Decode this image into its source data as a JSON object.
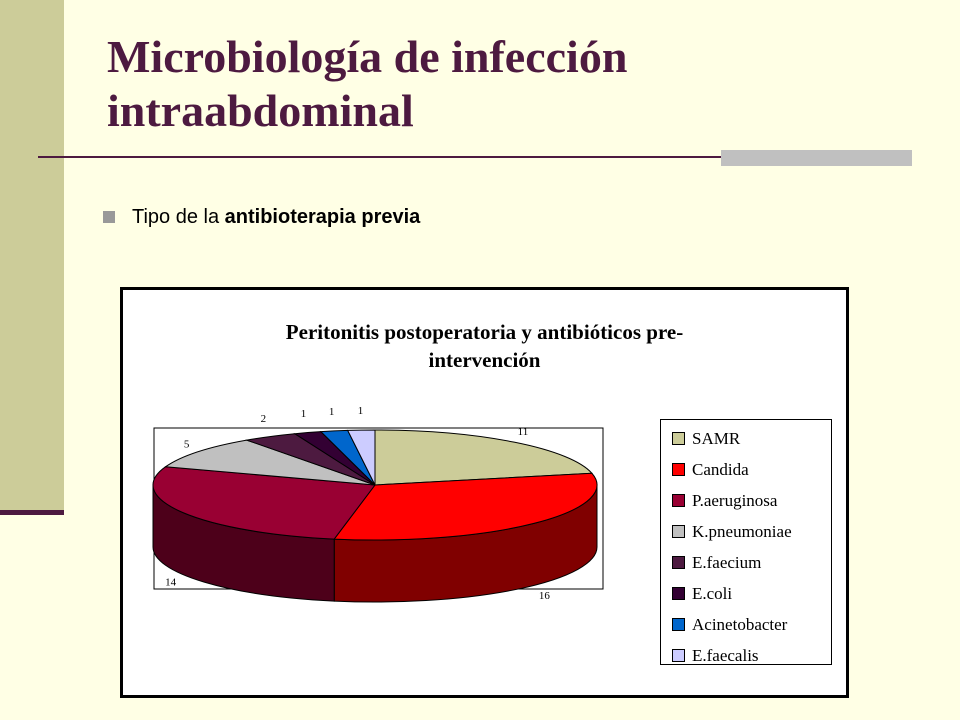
{
  "slide": {
    "title_line1": "Microbiología de infección",
    "title_line2": "intraabdominal",
    "bullet_prefix": "Tipo de la ",
    "bullet_bold": "antibioterapia previa"
  },
  "chart_data": {
    "type": "pie",
    "title_line1": "Peritonitis postoperatoria y antibióticos pre-",
    "title_line2": "intervención",
    "legend_position": "right",
    "three_d": true,
    "categories": [
      "SAMR",
      "Candida",
      "P.aeruginosa",
      "K.pneumoniae",
      "E.faecium",
      "E.coli",
      "Acinetobacter",
      "E.faecalis"
    ],
    "values": [
      11,
      16,
      14,
      5,
      2,
      1,
      1,
      1
    ],
    "colors": [
      "#CCCC99",
      "#FF0000",
      "#990033",
      "#C0C0C0",
      "#4D1A40",
      "#330033",
      "#0066CC",
      "#CCCCFF"
    ],
    "side_colors": [
      "#8A8A5C",
      "#800000",
      "#4D001A",
      "#808080",
      "#26001F",
      "#1A001A",
      "#003366",
      "#8080A0"
    ]
  }
}
